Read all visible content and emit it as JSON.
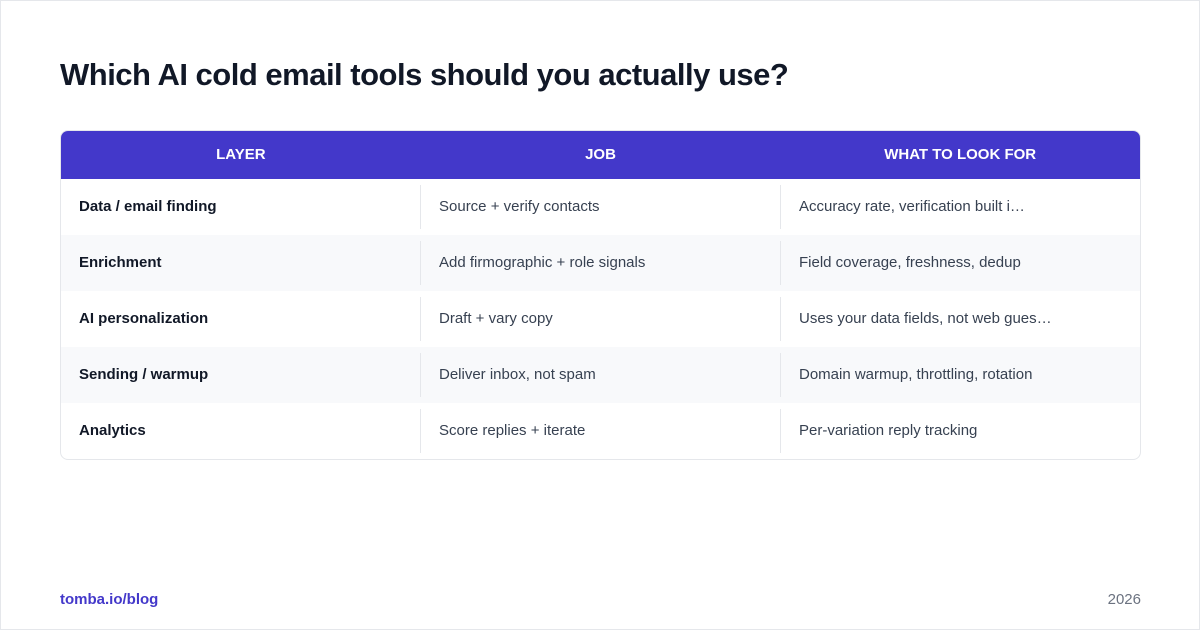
{
  "header": {
    "title": "Which AI cold email tools should you actually use?"
  },
  "table": {
    "columns": [
      "LAYER",
      "JOB",
      "WHAT TO LOOK FOR"
    ],
    "rows": [
      [
        "Data / email finding",
        "Source + verify contacts",
        "Accuracy rate, verification built i…"
      ],
      [
        "Enrichment",
        "Add firmographic + role signals",
        "Field coverage, freshness, dedup"
      ],
      [
        "AI personalization",
        "Draft + vary copy",
        "Uses your data fields, not web gues…"
      ],
      [
        "Sending / warmup",
        "Deliver inbox, not spam",
        "Domain warmup, throttling, rotation"
      ],
      [
        "Analytics",
        "Score replies + iterate",
        "Per-variation reply tracking"
      ]
    ]
  },
  "footer": {
    "source": "tomba.io/blog",
    "year": "2026"
  }
}
